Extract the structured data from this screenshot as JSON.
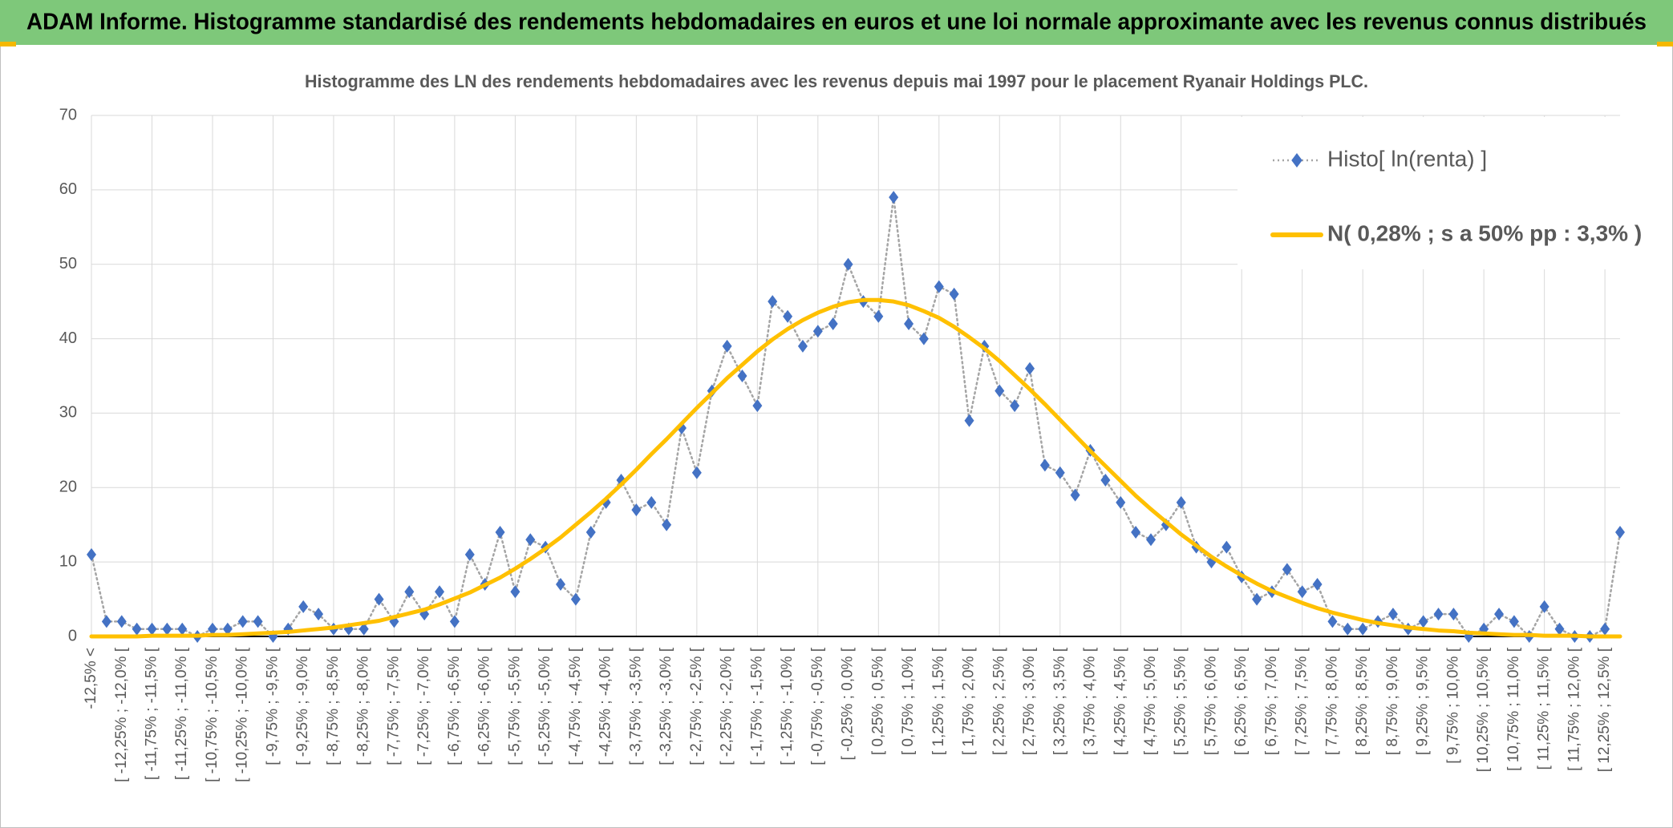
{
  "chart_data": {
    "type": "line",
    "header": "ADAM Informe. Histogramme standardisé des rendements hebdomadaires en euros et une loi normale approximante avec les revenus connus distribués",
    "title": "Histogramme des LN des rendements hebdomadaires avec les revenus depuis mai 1997 pour le placement Ryanair  Holdings PLC.",
    "categories": [
      "-12,5% <",
      null,
      "[ -12,25% ; -12,0% [",
      null,
      "[ -11,75% ; -11,5% [",
      null,
      "[ -11,25% ; -11,0% [",
      null,
      "[ -10,75% ; -10,5% [",
      null,
      "[ -10,25% ; -10,0% [",
      null,
      "[ -9,75% ; -9,5% [",
      null,
      "[ -9,25% ; -9,0% [",
      null,
      "[ -8,75% ; -8,5% [",
      null,
      "[ -8,25% ; -8,0% [",
      null,
      "[ -7,75% ; -7,5% [",
      null,
      "[ -7,25% ; -7,0% [",
      null,
      "[ -6,75% ; -6,5% [",
      null,
      "[ -6,25% ; -6,0% [",
      null,
      "[ -5,75% ; -5,5% [",
      null,
      "[ -5,25% ; -5,0% [",
      null,
      "[ -4,75% ; -4,5% [",
      null,
      "[ -4,25% ; -4,0% [",
      null,
      "[ -3,75% ; -3,5% [",
      null,
      "[ -3,25% ; -3,0% [",
      null,
      "[ -2,75% ; -2,5% [",
      null,
      "[ -2,25% ; -2,0% [",
      null,
      "[ -1,75% ; -1,5% [",
      null,
      "[ -1,25% ; -1,0% [",
      null,
      "[ -0,75% ; -0,5% [",
      null,
      "[ -0,25% ; 0,0% [",
      null,
      "[ 0,25% ; 0,5% [",
      null,
      "[ 0,75% ; 1,0% [",
      null,
      "[ 1,25% ; 1,5% [",
      null,
      "[ 1,75% ; 2,0% [",
      null,
      "[ 2,25% ; 2,5% [",
      null,
      "[ 2,75% ; 3,0% [",
      null,
      "[ 3,25% ; 3,5% [",
      null,
      "[ 3,75% ; 4,0% [",
      null,
      "[ 4,25% ; 4,5% [",
      null,
      "[ 4,75% ; 5,0% [",
      null,
      "[ 5,25% ; 5,5% [",
      null,
      "[ 5,75% ; 6,0% [",
      null,
      "[ 6,25% ; 6,5% [",
      null,
      "[ 6,75% ; 7,0% [",
      null,
      "[ 7,25% ; 7,5% [",
      null,
      "[ 7,75% ; 8,0% [",
      null,
      "[ 8,25% ; 8,5% [",
      null,
      "[ 8,75% ; 9,0% [",
      null,
      "[ 9,25% ; 9,5% [",
      null,
      "[ 9,75% ; 10,0% [",
      null,
      "[ 10,25% ; 10,5% [",
      null,
      "[ 10,75% ; 11,0% [",
      null,
      "[ 11,25% ; 11,5% [",
      null,
      "[ 11,75% ; 12,0% [",
      null,
      "[ 12,25% ; 12,5% [",
      null
    ],
    "series": [
      {
        "name": "Histo[ ln(renta) ]",
        "color": "#4472c4",
        "line_color": "#a5a5a5",
        "marker": "diamond",
        "values": [
          11,
          2,
          2,
          1,
          1,
          1,
          1,
          0,
          1,
          1,
          2,
          2,
          0,
          1,
          4,
          3,
          1,
          1,
          1,
          5,
          2,
          6,
          3,
          6,
          2,
          11,
          7,
          14,
          6,
          13,
          12,
          7,
          5,
          14,
          18,
          21,
          17,
          18,
          15,
          28,
          22,
          33,
          39,
          35,
          31,
          45,
          43,
          39,
          41,
          42,
          50,
          45,
          43,
          59,
          42,
          40,
          47,
          46,
          29,
          39,
          33,
          31,
          36,
          23,
          22,
          19,
          25,
          21,
          18,
          14,
          13,
          15,
          18,
          12,
          10,
          12,
          8,
          5,
          6,
          9,
          6,
          7,
          2,
          1,
          1,
          2,
          3,
          1,
          2,
          3,
          3,
          0,
          1,
          3,
          2,
          0,
          4,
          1,
          0,
          0,
          1,
          14
        ]
      },
      {
        "name": "N( 0,28% ; s a 50% pp : 3,3% )",
        "color": "#ffc000",
        "marker": "none",
        "values": [
          0,
          0,
          0,
          0,
          0.1,
          0.1,
          0.1,
          0.1,
          0.2,
          0.2,
          0.3,
          0.4,
          0.5,
          0.6,
          0.8,
          1.0,
          1.2,
          1.5,
          1.8,
          2.1,
          2.6,
          3.1,
          3.6,
          4.3,
          5.1,
          5.9,
          6.9,
          7.9,
          9.1,
          10.4,
          11.8,
          13.3,
          15.0,
          16.7,
          18.5,
          20.4,
          22.4,
          24.5,
          26.5,
          28.6,
          30.7,
          32.7,
          34.7,
          36.5,
          38.3,
          39.9,
          41.3,
          42.5,
          43.5,
          44.3,
          44.9,
          45.2,
          45.2,
          45.0,
          44.5,
          43.7,
          42.8,
          41.6,
          40.2,
          38.7,
          37.0,
          35.1,
          33.2,
          31.2,
          29.1,
          27.0,
          24.9,
          22.9,
          20.9,
          18.9,
          17.1,
          15.4,
          13.7,
          12.2,
          10.7,
          9.4,
          8.2,
          7.1,
          6.1,
          5.3,
          4.5,
          3.8,
          3.2,
          2.7,
          2.2,
          1.8,
          1.5,
          1.2,
          1.0,
          0.8,
          0.7,
          0.5,
          0.4,
          0.3,
          0.2,
          0.2,
          0.1,
          0.1,
          0.1,
          0,
          0,
          0
        ]
      }
    ],
    "ylim": [
      0,
      70
    ],
    "yticks": [
      0,
      10,
      20,
      30,
      40,
      50,
      60,
      70
    ],
    "grid": true,
    "legend": "upper right"
  }
}
